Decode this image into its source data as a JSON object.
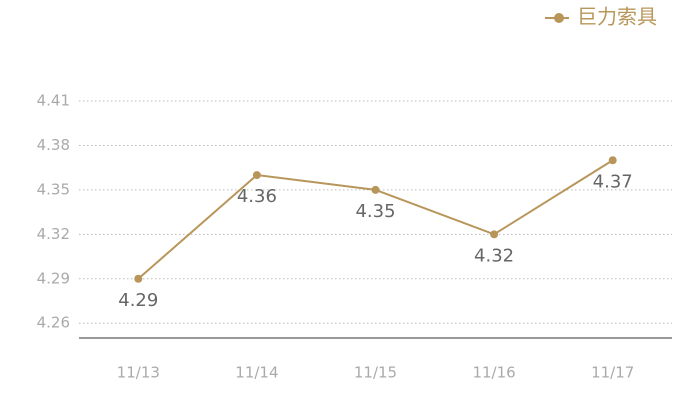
{
  "chart_data": {
    "type": "line",
    "categories": [
      "11/13",
      "11/14",
      "11/15",
      "11/16",
      "11/17"
    ],
    "series": [
      {
        "name": "巨力索具",
        "color": "#b8965a",
        "values": [
          4.29,
          4.36,
          4.35,
          4.32,
          4.37
        ]
      }
    ],
    "ylim": [
      4.25,
      4.41
    ],
    "yticks": [
      4.26,
      4.29,
      4.32,
      4.35,
      4.38,
      4.41
    ],
    "grid": true,
    "legend": "top-right",
    "data_labels": true
  }
}
